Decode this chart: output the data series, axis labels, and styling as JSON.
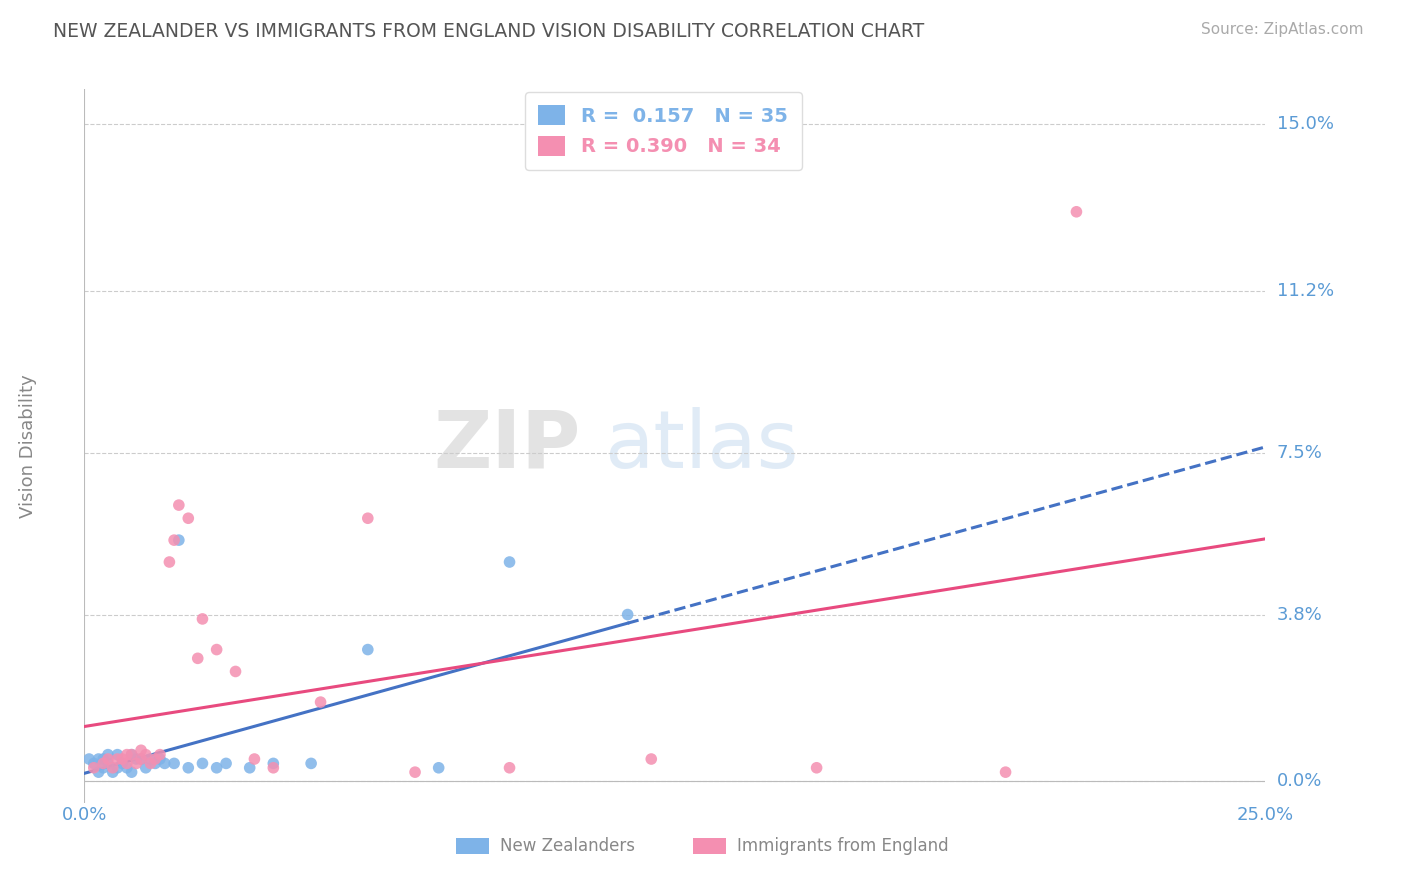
{
  "title": "NEW ZEALANDER VS IMMIGRANTS FROM ENGLAND VISION DISABILITY CORRELATION CHART",
  "source": "Source: ZipAtlas.com",
  "ylabel": "Vision Disability",
  "xlim": [
    0.0,
    0.25
  ],
  "ylim": [
    -0.005,
    0.158
  ],
  "yticks": [
    0.0,
    0.038,
    0.075,
    0.112,
    0.15
  ],
  "ytick_labels": [
    "0.0%",
    "3.8%",
    "7.5%",
    "11.2%",
    "15.0%"
  ],
  "xtick_labels": [
    "0.0%",
    "25.0%"
  ],
  "nz_R": 0.157,
  "nz_N": 35,
  "eng_R": 0.39,
  "eng_N": 34,
  "nz_color": "#7EB3E8",
  "eng_color": "#F48FB1",
  "nz_line_color": "#4472C4",
  "eng_line_color": "#E84A7F",
  "nz_scatter_x": [
    0.001,
    0.002,
    0.003,
    0.003,
    0.004,
    0.004,
    0.005,
    0.005,
    0.006,
    0.007,
    0.007,
    0.008,
    0.009,
    0.01,
    0.01,
    0.011,
    0.012,
    0.013,
    0.014,
    0.015,
    0.016,
    0.017,
    0.019,
    0.02,
    0.022,
    0.025,
    0.028,
    0.03,
    0.035,
    0.04,
    0.048,
    0.06,
    0.075,
    0.09,
    0.115
  ],
  "nz_scatter_y": [
    0.005,
    0.004,
    0.002,
    0.005,
    0.003,
    0.005,
    0.004,
    0.006,
    0.002,
    0.003,
    0.006,
    0.004,
    0.003,
    0.002,
    0.006,
    0.005,
    0.005,
    0.003,
    0.005,
    0.004,
    0.005,
    0.004,
    0.004,
    0.055,
    0.003,
    0.004,
    0.003,
    0.004,
    0.003,
    0.004,
    0.004,
    0.03,
    0.003,
    0.05,
    0.038
  ],
  "eng_scatter_x": [
    0.002,
    0.004,
    0.005,
    0.006,
    0.007,
    0.008,
    0.009,
    0.009,
    0.01,
    0.011,
    0.012,
    0.012,
    0.013,
    0.014,
    0.015,
    0.016,
    0.018,
    0.019,
    0.02,
    0.022,
    0.024,
    0.025,
    0.028,
    0.032,
    0.036,
    0.04,
    0.05,
    0.06,
    0.07,
    0.09,
    0.12,
    0.155,
    0.195,
    0.21
  ],
  "eng_scatter_y": [
    0.003,
    0.004,
    0.005,
    0.003,
    0.005,
    0.005,
    0.006,
    0.004,
    0.006,
    0.004,
    0.005,
    0.007,
    0.006,
    0.004,
    0.005,
    0.006,
    0.05,
    0.055,
    0.063,
    0.06,
    0.028,
    0.037,
    0.03,
    0.025,
    0.005,
    0.003,
    0.018,
    0.06,
    0.002,
    0.003,
    0.005,
    0.003,
    0.002,
    0.13
  ],
  "watermark_zip": "ZIP",
  "watermark_atlas": "atlas",
  "background_color": "#FFFFFF",
  "title_color": "#555555",
  "axis_label_color": "#888888",
  "tick_label_color": "#5B9BD5",
  "grid_color": "#CCCCCC",
  "source_color": "#AAAAAA",
  "legend_label_color": "#888888"
}
